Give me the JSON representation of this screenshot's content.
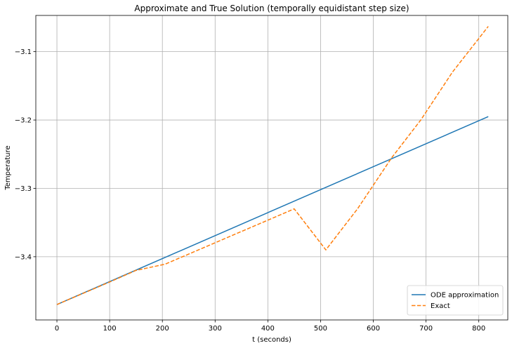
{
  "chart_data": {
    "type": "line",
    "title": "Approximate and True Solution (temporally equidistant step size)",
    "xlabel": "t (seconds)",
    "ylabel": "Temperature",
    "xlim": [
      -40,
      855
    ],
    "ylim": [
      -3.4925,
      -3.047
    ],
    "xticks": [
      0,
      100,
      200,
      300,
      400,
      500,
      600,
      700,
      800
    ],
    "yticks": [
      -3.4,
      -3.3,
      -3.2,
      -3.1
    ],
    "ytick_labels": [
      "−3.4",
      "−3.3",
      "−3.2",
      "−3.1"
    ],
    "grid": true,
    "legend_position": "lower-right",
    "series": [
      {
        "name": "ODE approximation",
        "color": "#1f77b4",
        "style": "solid",
        "x": [
          0,
          818
        ],
        "y": [
          -3.47,
          -3.195
        ]
      },
      {
        "name": "Exact",
        "color": "#ff7f0e",
        "style": "dashed",
        "x": [
          0,
          100,
          150,
          205,
          450,
          510,
          570,
          635,
          690,
          750,
          818
        ],
        "y": [
          -3.47,
          -3.437,
          -3.42,
          -3.411,
          -3.33,
          -3.39,
          -3.33,
          -3.255,
          -3.2,
          -3.13,
          -3.063
        ]
      }
    ]
  }
}
